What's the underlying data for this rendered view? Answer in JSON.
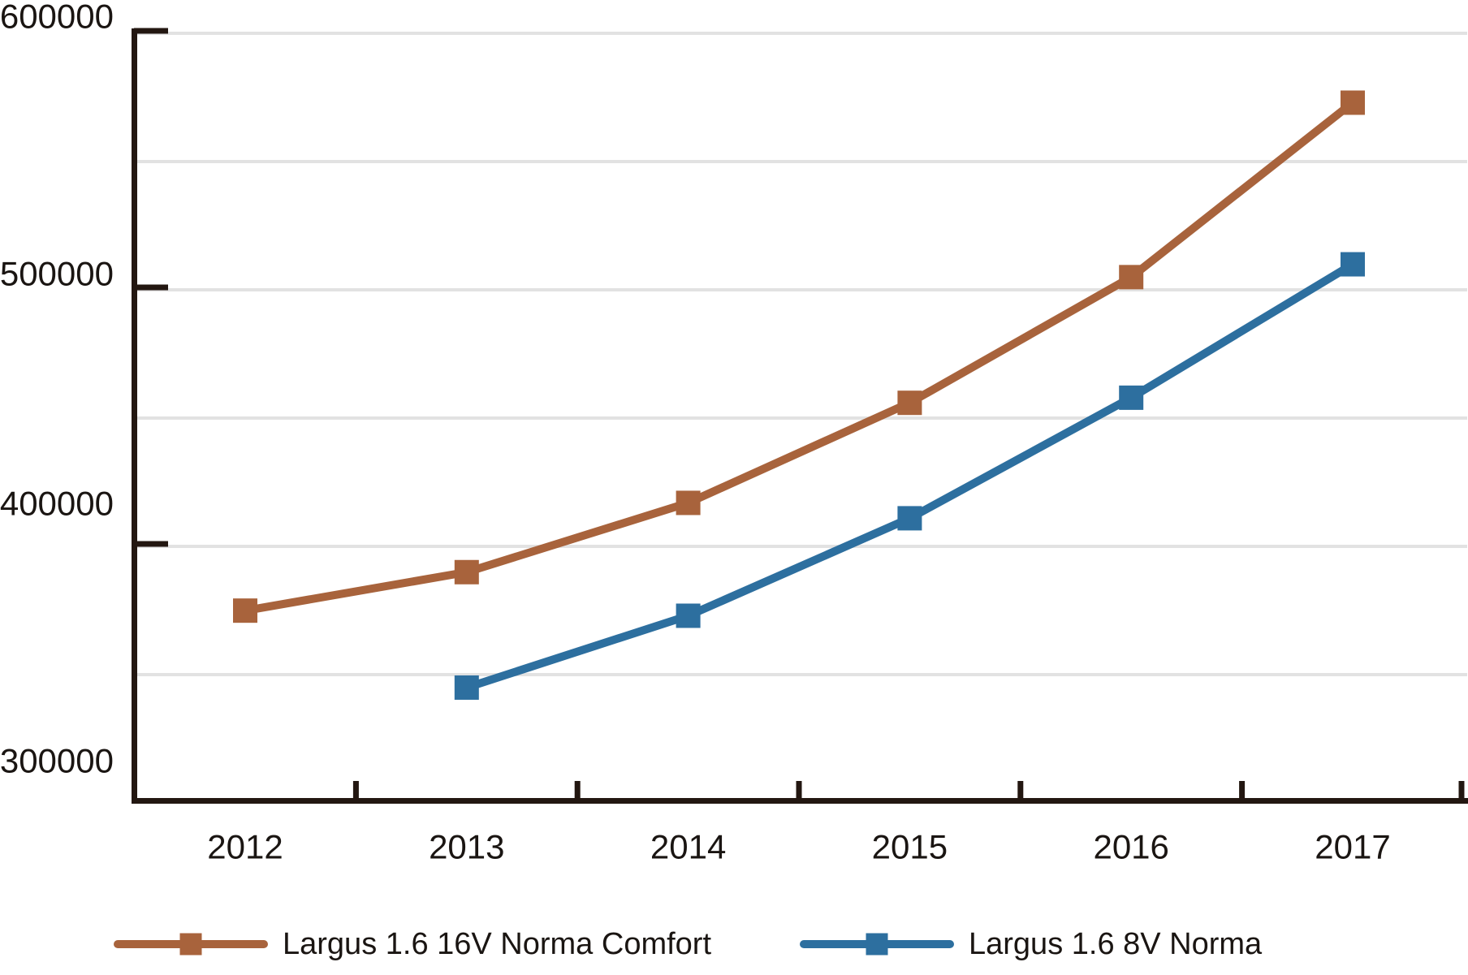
{
  "chart_data": {
    "type": "line",
    "title": "",
    "xlabel": "",
    "ylabel": "",
    "x_tick_labels": [
      "2012",
      "2013",
      "2014",
      "2015",
      "2016",
      "2017"
    ],
    "y_tick_labels": [
      "300000",
      "400000",
      "500000",
      "600000"
    ],
    "y_tick_values": [
      300000,
      400000,
      500000,
      600000
    ],
    "ylim": [
      300000,
      600000
    ],
    "gridline_step": 50000,
    "grid": "horizontal light-gray lines every 50000",
    "legend_position": "bottom",
    "marker_shape": "square",
    "series": [
      {
        "name": "Largus 1.6 16V Norma Comfort",
        "color": "#a8633c",
        "points": [
          {
            "x": "2012",
            "y": 374000
          },
          {
            "x": "2013",
            "y": 389000
          },
          {
            "x": "2014",
            "y": 416000
          },
          {
            "x": "2015",
            "y": 455000
          },
          {
            "x": "2016",
            "y": 504000
          },
          {
            "x": "2017",
            "y": 572000
          }
        ]
      },
      {
        "name": "Largus 1.6 8V Norma",
        "color": "#2d6f9f",
        "points": [
          {
            "x": "2013",
            "y": 344000
          },
          {
            "x": "2014",
            "y": 372000
          },
          {
            "x": "2015",
            "y": 410000
          },
          {
            "x": "2016",
            "y": 457000
          },
          {
            "x": "2017",
            "y": 509000
          }
        ]
      }
    ],
    "colors": {
      "axis": "#231711",
      "grid": "#e2e2e2",
      "text": "#1a1512"
    }
  }
}
